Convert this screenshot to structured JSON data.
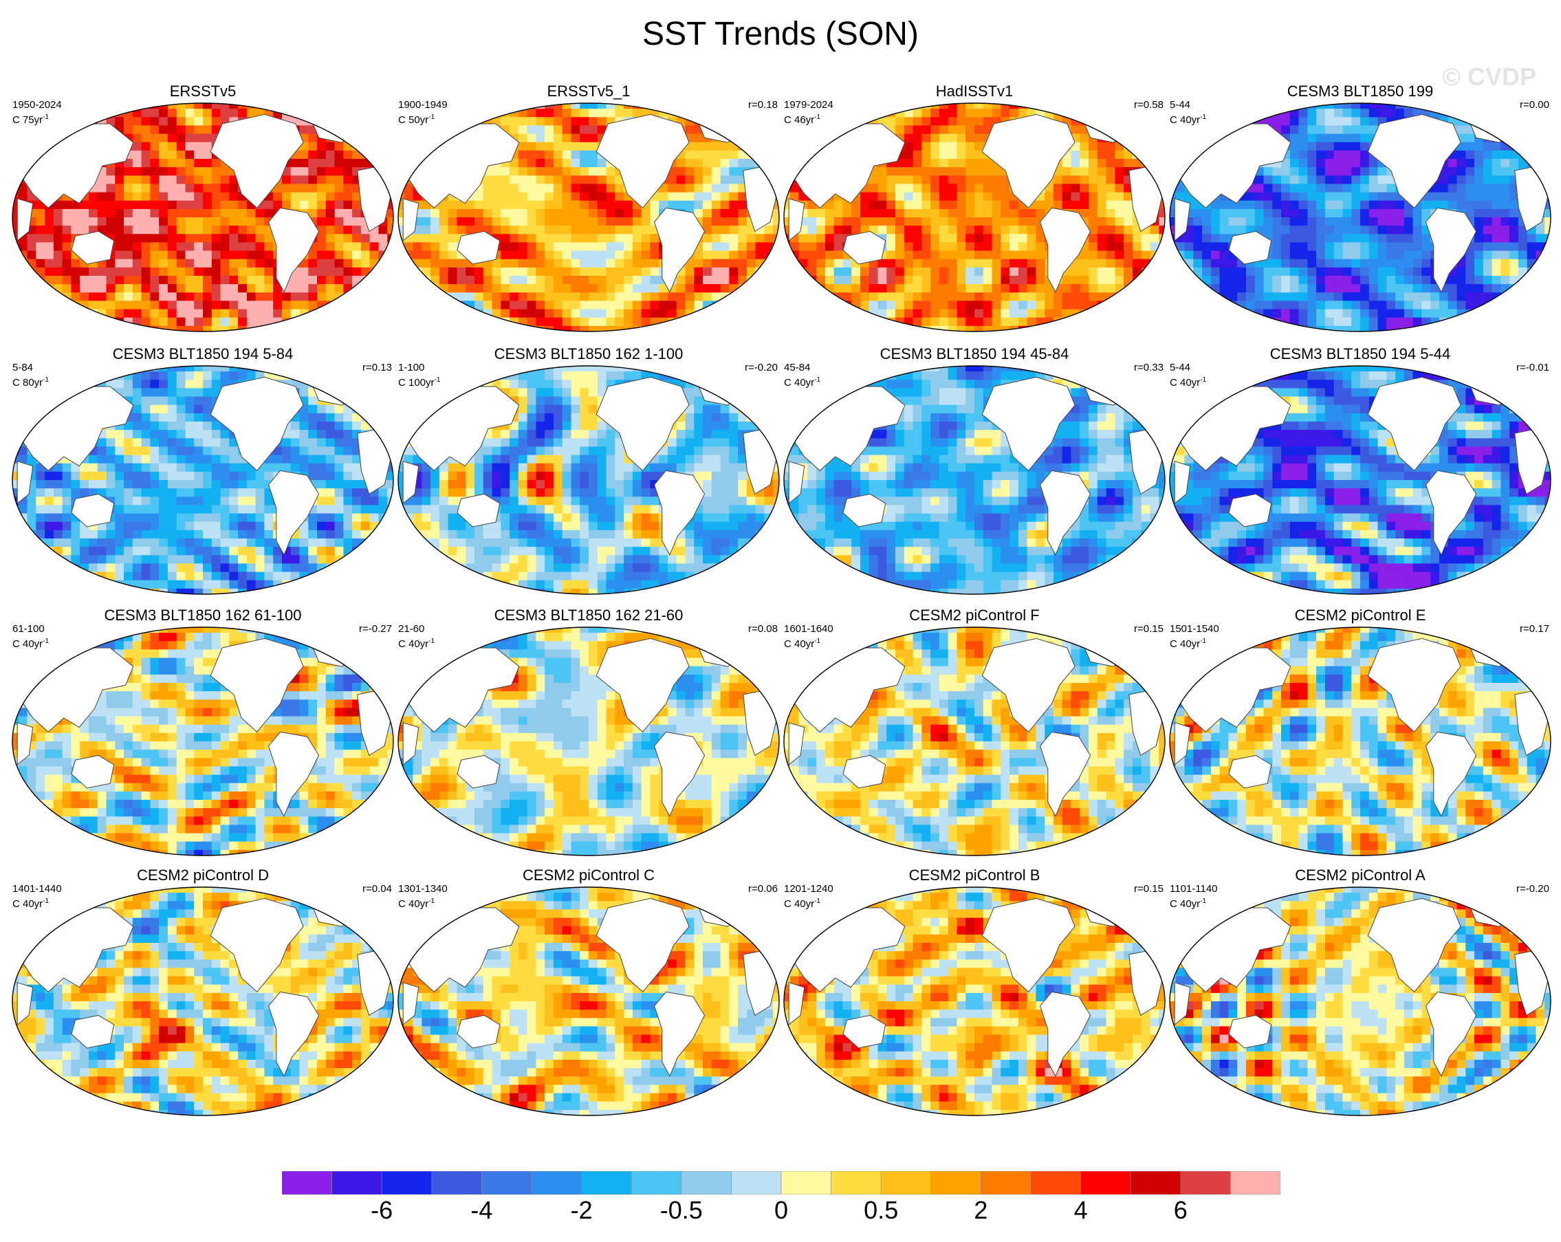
{
  "title": "SST Trends (SON)",
  "watermark": "© CVDP",
  "colorbar": {
    "colors": [
      "#8a1fe8",
      "#3b18e6",
      "#1424e8",
      "#3c5ae0",
      "#3a78e8",
      "#2c8ff0",
      "#14b1f2",
      "#4cc4f4",
      "#90cbec",
      "#bee2f5",
      "#fff9a0",
      "#ffdc42",
      "#ffc01c",
      "#ffa300",
      "#ff7a00",
      "#ff4a0a",
      "#ff0000",
      "#d20000",
      "#dc4040",
      "#ffb0b0"
    ],
    "tick_labels": [
      "-6",
      "-4",
      "-2",
      "-0.5",
      "0",
      "0.5",
      "2",
      "4",
      "6"
    ],
    "tick_boundaries": [
      2,
      4,
      6,
      8,
      10,
      12,
      14,
      16,
      18
    ]
  },
  "panels": [
    {
      "title": "ERSSTv5",
      "years": "1950-2024",
      "units": "C 75yr",
      "unit_exp": "-1",
      "corr": "",
      "bias": 0.9,
      "seed": 1
    },
    {
      "title": "ERSSTv5_1",
      "years": "1900-1949",
      "units": "C 50yr",
      "unit_exp": "-1",
      "corr": "r=0.18",
      "bias": 0.4,
      "seed": 2
    },
    {
      "title": "HadISSTv1",
      "years": "1979-2024",
      "units": "C 46yr",
      "unit_exp": "-1",
      "corr": "r=0.58",
      "bias": 0.55,
      "seed": 3
    },
    {
      "title": "CESM3 BLT1850 199",
      "years": "5-44",
      "units": "C 40yr",
      "unit_exp": "-1",
      "corr": "r=0.00",
      "bias": -0.75,
      "seed": 4
    },
    {
      "title": "CESM3 BLT1850 194 5-84",
      "years": "5-84",
      "units": "C 80yr",
      "unit_exp": "-1",
      "corr": "r=0.13",
      "bias": -0.4,
      "seed": 5
    },
    {
      "title": "CESM3 BLT1850 162 1-100",
      "years": "1-100",
      "units": "C 100yr",
      "unit_exp": "-1",
      "corr": "r=-0.20",
      "bias": -0.25,
      "seed": 6
    },
    {
      "title": "CESM3 BLT1850 194 45-84",
      "years": "45-84",
      "units": "C 40yr",
      "unit_exp": "-1",
      "corr": "r=0.33",
      "bias": -0.4,
      "seed": 7
    },
    {
      "title": "CESM3 BLT1850 194 5-44",
      "years": "5-44",
      "units": "C 40yr",
      "unit_exp": "-1",
      "corr": "r=-0.01",
      "bias": -0.7,
      "seed": 8
    },
    {
      "title": "CESM3 BLT1850 162 61-100",
      "years": "61-100",
      "units": "C 40yr",
      "unit_exp": "-1",
      "corr": "r=-0.27",
      "bias": 0.05,
      "seed": 9
    },
    {
      "title": "CESM3 BLT1850 162 21-60",
      "years": "21-60",
      "units": "C 40yr",
      "unit_exp": "-1",
      "corr": "r=0.08",
      "bias": 0.0,
      "seed": 10
    },
    {
      "title": "CESM2 piControl F",
      "years": "1601-1640",
      "units": "C 40yr",
      "unit_exp": "-1",
      "corr": "r=0.15",
      "bias": 0.05,
      "seed": 11
    },
    {
      "title": "CESM2 piControl E",
      "years": "1501-1540",
      "units": "C 40yr",
      "unit_exp": "-1",
      "corr": "r=0.17",
      "bias": 0.0,
      "seed": 12
    },
    {
      "title": "CESM2 piControl D",
      "years": "1401-1440",
      "units": "C 40yr",
      "unit_exp": "-1",
      "corr": "r=0.04",
      "bias": 0.1,
      "seed": 13
    },
    {
      "title": "CESM2 piControl C",
      "years": "1301-1340",
      "units": "C 40yr",
      "unit_exp": "-1",
      "corr": "r=0.06",
      "bias": 0.15,
      "seed": 14
    },
    {
      "title": "CESM2 piControl B",
      "years": "1201-1240",
      "units": "C 40yr",
      "unit_exp": "-1",
      "corr": "r=0.15",
      "bias": 0.2,
      "seed": 15
    },
    {
      "title": "CESM2 piControl A",
      "years": "1101-1140",
      "units": "C 40yr",
      "unit_exp": "-1",
      "corr": "r=-0.20",
      "bias": 0.1,
      "seed": 16
    }
  ]
}
